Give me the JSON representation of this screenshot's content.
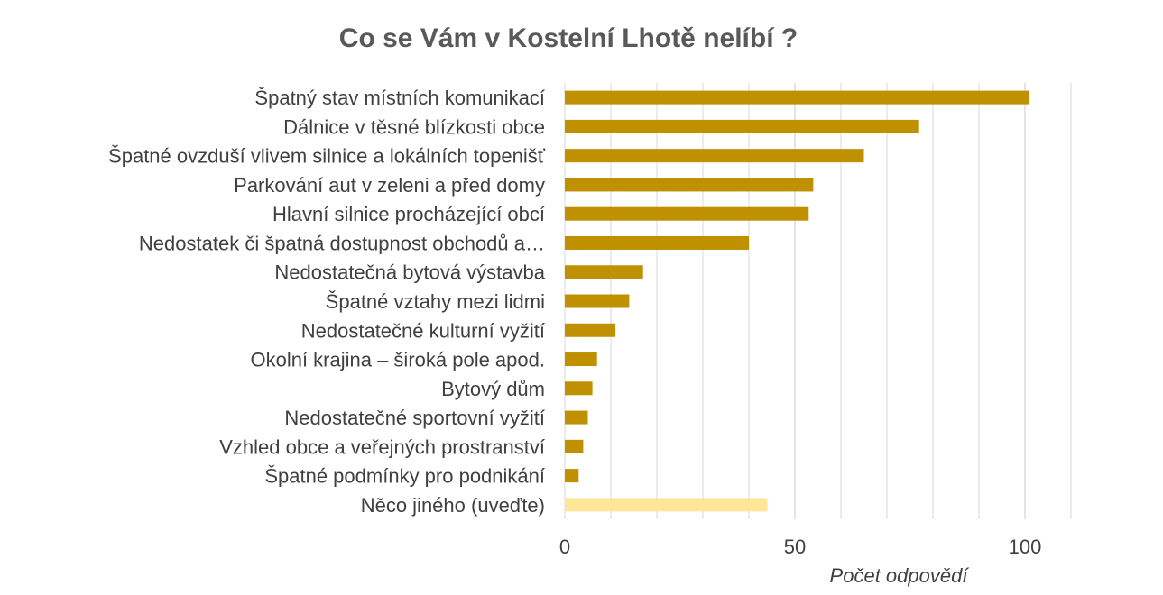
{
  "chart_data": {
    "type": "bar",
    "orientation": "horizontal",
    "title": "Co se Vám v Kostelní Lhotě nelíbí ?",
    "xlabel": "Počet odpovědí",
    "ylabel": "",
    "xlim": [
      0,
      110
    ],
    "x_ticks": [
      0,
      50,
      100
    ],
    "grid": true,
    "categories": [
      "Špatný stav místních komunikací",
      "Dálnice v těsné blízkosti obce",
      "Špatné ovzduší vlivem silnice a lokálních topenišť",
      "Parkování aut v zeleni a před domy",
      "Hlavní silnice procházející obcí",
      "Nedostatek či špatná dostupnost obchodů a…",
      "Nedostatečná bytová výstavba",
      "Špatné vztahy mezi lidmi",
      "Nedostatečné kulturní vyžití",
      "Okolní krajina – široká pole apod.",
      "Bytový dům",
      "Nedostatečné sportovní vyžití",
      "Vzhled obce a veřejných prostranství",
      "Špatné podmínky pro podnikání",
      "Něco jiného (uveďte)"
    ],
    "values": [
      101,
      77,
      65,
      54,
      53,
      40,
      17,
      14,
      11,
      7,
      6,
      5,
      4,
      3,
      44
    ],
    "bar_colors": [
      "#BF9000",
      "#BF9000",
      "#BF9000",
      "#BF9000",
      "#BF9000",
      "#BF9000",
      "#BF9000",
      "#BF9000",
      "#BF9000",
      "#BF9000",
      "#BF9000",
      "#BF9000",
      "#BF9000",
      "#BF9000",
      "#FFE699"
    ],
    "grid_color": "#D9D9D9"
  }
}
